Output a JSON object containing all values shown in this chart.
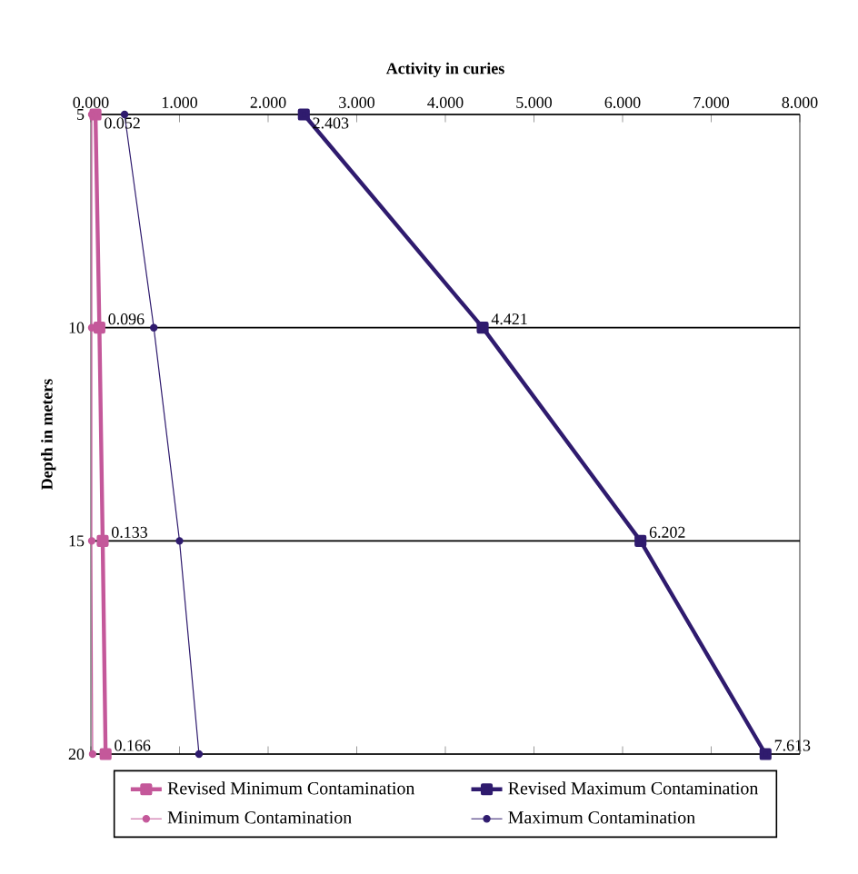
{
  "chart_data": {
    "type": "line",
    "orientation": "horizontal",
    "xlabel": "Activity in curies",
    "ylabel": "Depth in meters",
    "categories": [
      "5",
      "10",
      "15",
      "20"
    ],
    "xlim": [
      0,
      8
    ],
    "xticks": [
      {
        "value": 0,
        "label": "0.000"
      },
      {
        "value": 1,
        "label": "1.000"
      },
      {
        "value": 2,
        "label": "2.000"
      },
      {
        "value": 3,
        "label": "3.000"
      },
      {
        "value": 4,
        "label": "4.000"
      },
      {
        "value": 5,
        "label": "5.000"
      },
      {
        "value": 6,
        "label": "6.000"
      },
      {
        "value": 7,
        "label": "7.000"
      },
      {
        "value": 8,
        "label": "8.000"
      }
    ],
    "grid": "y",
    "legend": "bottom",
    "series": [
      {
        "name": "Revised Minimum Contamination",
        "color": "#c4589a",
        "marker": "square",
        "values": [
          0.052,
          0.096,
          0.133,
          0.166
        ],
        "value_labels": [
          "0.052",
          "0.096",
          "0.133",
          "0.166"
        ]
      },
      {
        "name": "Revised Maximum Contamination",
        "color": "#2f1b6e",
        "marker": "square",
        "values": [
          2.403,
          4.421,
          6.202,
          7.613
        ],
        "value_labels": [
          "2.403",
          "4.421",
          "6.202",
          "7.613"
        ]
      },
      {
        "name": "Minimum Contamination",
        "color": "#c4589a",
        "marker": "circle",
        "values": [
          0.01,
          0.01,
          0.01,
          0.02
        ]
      },
      {
        "name": "Maximum Contamination",
        "color": "#2f1b6e",
        "marker": "circle",
        "values": [
          0.38,
          0.71,
          1.0,
          1.22
        ]
      }
    ]
  }
}
